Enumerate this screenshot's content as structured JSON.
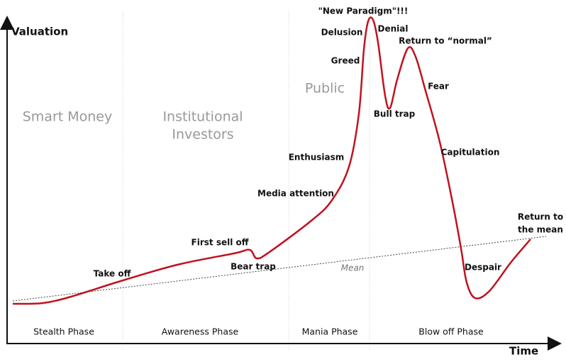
{
  "axes": {
    "y_label": "Valuation",
    "x_label": "Time"
  },
  "phases": [
    "Stealth Phase",
    "Awareness Phase",
    "Mania Phase",
    "Blow off Phase"
  ],
  "groups": [
    {
      "lines": [
        "Smart Money"
      ]
    },
    {
      "lines": [
        "Institutional",
        "Investors"
      ]
    },
    {
      "lines": [
        "Public"
      ]
    }
  ],
  "mean_label": "Mean",
  "annotations": [
    "Take off",
    "First sell off",
    "Bear trap",
    "Media attention",
    "Enthusiasm",
    "Greed",
    "Delusion",
    "\"New Paradigm\"!!!",
    "Denial",
    "Return to “normal”",
    "Fear",
    "Bull trap",
    "Capitulation",
    "Despair",
    [
      "Return to",
      "the mean"
    ]
  ]
}
